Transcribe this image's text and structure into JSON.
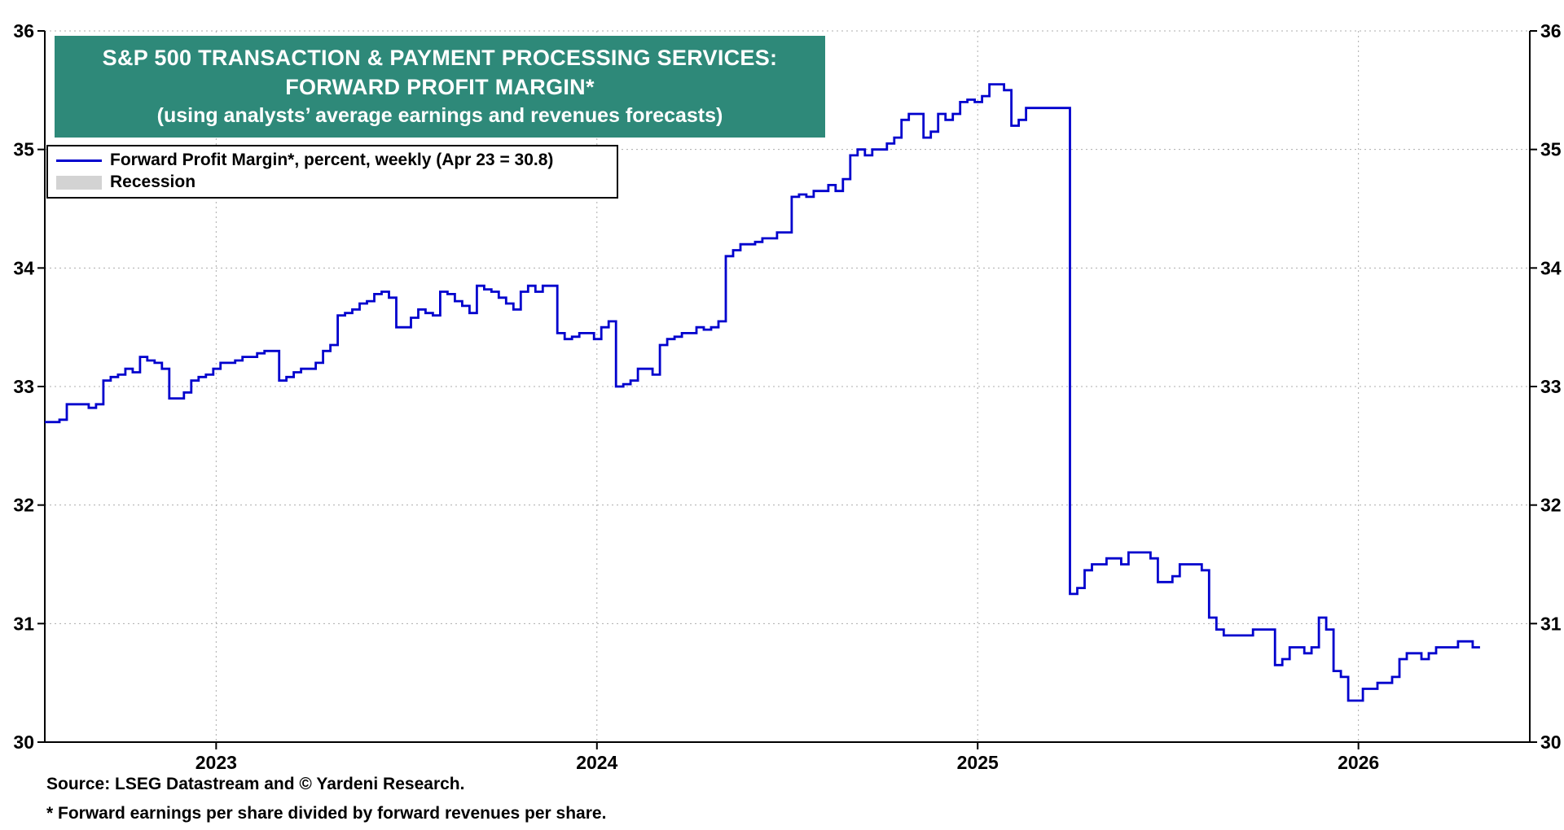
{
  "title": {
    "line1": "S&P 500 TRANSACTION & PAYMENT PROCESSING SERVICES:",
    "line2": "FORWARD PROFIT MARGIN*",
    "line3": "(using analysts’ average earnings and revenues forecasts)"
  },
  "legend": {
    "series_label": "Forward Profit Margin*, percent, weekly (Apr 23 = 30.8)",
    "recession_label": "Recession"
  },
  "footer": {
    "source": "Source: LSEG Datastream and © Yardeni Research.",
    "footnote": "* Forward earnings per share divided by forward revenues per share."
  },
  "colors": {
    "title_bg": "#2E8979",
    "line": "#0000CD",
    "recession": "#D3D3D3",
    "grid": "#ACACAC",
    "axis": "#000000"
  },
  "chart_data": {
    "type": "line",
    "title": "S&P 500 Transaction & Payment Processing Services: Forward Profit Margin",
    "series": [
      {
        "name": "Forward Profit Margin, percent, weekly",
        "latest_label": "Apr 23",
        "latest_value": 30.8
      }
    ],
    "ylabel": "percent",
    "y_range": [
      30,
      36
    ],
    "y_ticks": [
      30,
      31,
      32,
      33,
      34,
      35,
      36
    ],
    "x_range": [
      2022.55,
      2026.45
    ],
    "x_ticks": [
      {
        "t": 2023,
        "label": "2023"
      },
      {
        "t": 2024,
        "label": "2024"
      },
      {
        "t": 2025,
        "label": "2025"
      },
      {
        "t": 2026,
        "label": "2026"
      }
    ],
    "grid": "dotted",
    "legend_position": "top-left",
    "x_start": 2022.55,
    "x_step": 0.019231,
    "values": [
      32.7,
      32.7,
      32.72,
      32.85,
      32.85,
      32.85,
      32.82,
      32.85,
      33.05,
      33.08,
      33.1,
      33.15,
      33.12,
      33.25,
      33.22,
      33.2,
      33.15,
      32.9,
      32.9,
      32.95,
      33.05,
      33.08,
      33.1,
      33.15,
      33.2,
      33.2,
      33.22,
      33.25,
      33.25,
      33.28,
      33.3,
      33.3,
      33.05,
      33.08,
      33.12,
      33.15,
      33.15,
      33.2,
      33.3,
      33.35,
      33.6,
      33.62,
      33.65,
      33.7,
      33.72,
      33.78,
      33.8,
      33.75,
      33.5,
      33.5,
      33.58,
      33.65,
      33.62,
      33.6,
      33.8,
      33.78,
      33.72,
      33.68,
      33.62,
      33.85,
      33.82,
      33.8,
      33.75,
      33.7,
      33.65,
      33.8,
      33.85,
      33.8,
      33.85,
      33.85,
      33.45,
      33.4,
      33.42,
      33.45,
      33.45,
      33.4,
      33.5,
      33.55,
      33.0,
      33.02,
      33.05,
      33.15,
      33.15,
      33.1,
      33.35,
      33.4,
      33.42,
      33.45,
      33.45,
      33.5,
      33.48,
      33.5,
      33.55,
      34.1,
      34.15,
      34.2,
      34.2,
      34.22,
      34.25,
      34.25,
      34.3,
      34.3,
      34.6,
      34.62,
      34.6,
      34.65,
      34.65,
      34.7,
      34.65,
      34.75,
      34.95,
      35.0,
      34.95,
      35.0,
      35.0,
      35.05,
      35.1,
      35.25,
      35.3,
      35.3,
      35.1,
      35.15,
      35.3,
      35.25,
      35.3,
      35.4,
      35.42,
      35.4,
      35.45,
      35.55,
      35.55,
      35.5,
      35.2,
      35.25,
      35.35,
      35.35,
      35.35,
      35.35,
      35.35,
      35.35,
      31.25,
      31.3,
      31.45,
      31.5,
      31.5,
      31.55,
      31.55,
      31.5,
      31.6,
      31.6,
      31.6,
      31.55,
      31.35,
      31.35,
      31.4,
      31.5,
      31.5,
      31.5,
      31.45,
      31.05,
      30.95,
      30.9,
      30.9,
      30.9,
      30.9,
      30.95,
      30.95,
      30.95,
      30.65,
      30.7,
      30.8,
      30.8,
      30.75,
      30.8,
      31.05,
      30.95,
      30.6,
      30.55,
      30.35,
      30.35,
      30.45,
      30.45,
      30.5,
      30.5,
      30.55,
      30.7,
      30.75,
      30.75,
      30.7,
      30.75,
      30.8,
      30.8,
      30.8,
      30.85,
      30.85,
      30.8
    ]
  }
}
